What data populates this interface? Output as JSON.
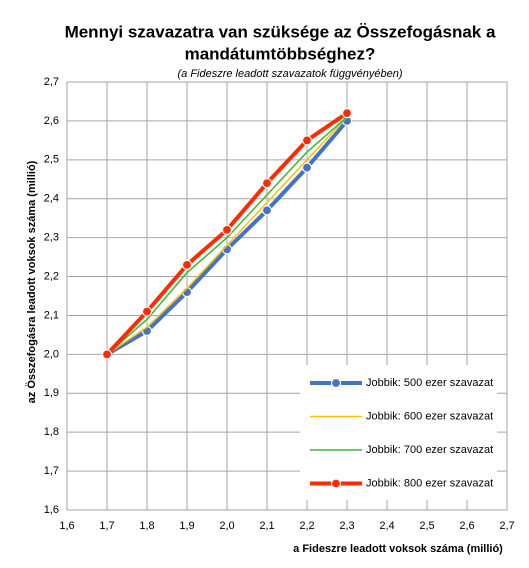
{
  "chart_data": {
    "type": "line",
    "title": [
      "Mennyi szavazatra van szüksége az Összefogásnak a",
      "mandátumtöbbséghez?"
    ],
    "subtitle": "(a Fideszre  leadott szavazatok függvényében)",
    "x_label": "a Fideszre leadott voksok száma (millió)",
    "y_label": "az Összefogásra  leadott voksok száma  (millió)",
    "x": [
      1.7,
      1.8,
      1.9,
      2.0,
      2.1,
      2.2,
      2.3
    ],
    "series": [
      {
        "name": "Jobbik: 500 ezer szavazat",
        "color": "#4472c4",
        "markers": true,
        "values": [
          2.0,
          2.06,
          2.16,
          2.27,
          2.37,
          2.48,
          2.6
        ]
      },
      {
        "name": "Jobbik: 600 ezer szavazat",
        "color": "#ffc000",
        "markers": false,
        "values": [
          2.0,
          2.07,
          2.17,
          2.28,
          2.39,
          2.5,
          2.61
        ]
      },
      {
        "name": "Jobbik: 700 ezer szavazat",
        "color": "#3cb82c",
        "markers": false,
        "values": [
          2.0,
          2.09,
          2.21,
          2.3,
          2.41,
          2.52,
          2.61
        ]
      },
      {
        "name": "Jobbik: 800 ezer szavazat",
        "color": "#ff2a00",
        "markers": true,
        "values": [
          2.0,
          2.11,
          2.23,
          2.32,
          2.44,
          2.55,
          2.62
        ]
      }
    ],
    "xlim": [
      1.6,
      2.7
    ],
    "ylim": [
      1.6,
      2.7
    ],
    "xticks": [
      {
        "value": 1.6,
        "label": "1,6"
      },
      {
        "value": 1.7,
        "label": "1,7"
      },
      {
        "value": 1.8,
        "label": "1,8"
      },
      {
        "value": 1.9,
        "label": "1,9"
      },
      {
        "value": 2.0,
        "label": "2,0"
      },
      {
        "value": 2.1,
        "label": "2,1"
      },
      {
        "value": 2.2,
        "label": "2,2"
      },
      {
        "value": 2.3,
        "label": "2,3"
      },
      {
        "value": 2.4,
        "label": "2,4"
      },
      {
        "value": 2.5,
        "label": "2,5"
      },
      {
        "value": 2.6,
        "label": "2,6"
      },
      {
        "value": 2.7,
        "label": "2,7"
      }
    ],
    "yticks": [
      {
        "value": 1.6,
        "label": "1,6"
      },
      {
        "value": 1.7,
        "label": "1,7"
      },
      {
        "value": 1.8,
        "label": "1,8"
      },
      {
        "value": 1.9,
        "label": "1,9"
      },
      {
        "value": 2.0,
        "label": "2,0"
      },
      {
        "value": 2.1,
        "label": "2,1"
      },
      {
        "value": 2.2,
        "label": "2,2"
      },
      {
        "value": 2.3,
        "label": "2,3"
      },
      {
        "value": 2.4,
        "label": "2,4"
      },
      {
        "value": 2.5,
        "label": "2,5"
      },
      {
        "value": 2.6,
        "label": "2,6"
      },
      {
        "value": 2.7,
        "label": "2,7"
      }
    ],
    "grid": true,
    "legend": "lower right"
  }
}
